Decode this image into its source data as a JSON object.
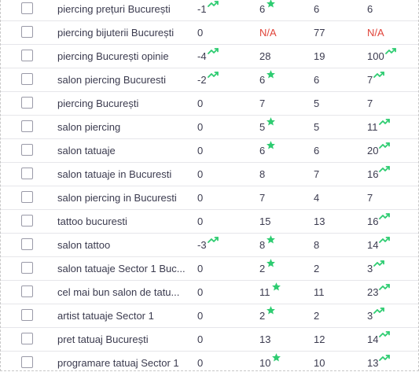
{
  "colors": {
    "trend": "#2ecc71",
    "na": "#e0443a",
    "text": "#3b3b4f"
  },
  "rows": [
    {
      "keyword": "piercing prețuri București",
      "change": "-1",
      "change_icon": "trend-up-icon",
      "pos": "6",
      "pos_icon": "star-icon",
      "prev": "6",
      "best": "6",
      "best_icon": ""
    },
    {
      "keyword": "piercing bijuterii București",
      "change": "0",
      "change_icon": "",
      "pos": "N/A",
      "pos_icon": "",
      "prev": "77",
      "best": "N/A",
      "best_icon": ""
    },
    {
      "keyword": "piercing București opinie",
      "change": "-4",
      "change_icon": "trend-up-icon",
      "pos": "28",
      "pos_icon": "",
      "prev": "19",
      "best": "100",
      "best_icon": "trend-up-icon"
    },
    {
      "keyword": "salon piercing Bucuresti",
      "change": "-2",
      "change_icon": "trend-up-icon",
      "pos": "6",
      "pos_icon": "star-icon",
      "prev": "6",
      "best": "7",
      "best_icon": "trend-up-icon"
    },
    {
      "keyword": "piercing București",
      "change": "0",
      "change_icon": "",
      "pos": "7",
      "pos_icon": "",
      "prev": "5",
      "best": "7",
      "best_icon": ""
    },
    {
      "keyword": "salon piercing",
      "change": "0",
      "change_icon": "",
      "pos": "5",
      "pos_icon": "star-icon",
      "prev": "5",
      "best": "11",
      "best_icon": "trend-up-icon"
    },
    {
      "keyword": "salon tatuaje",
      "change": "0",
      "change_icon": "",
      "pos": "6",
      "pos_icon": "star-icon",
      "prev": "6",
      "best": "20",
      "best_icon": "trend-up-icon"
    },
    {
      "keyword": "salon tatuaje in Bucuresti",
      "change": "0",
      "change_icon": "",
      "pos": "8",
      "pos_icon": "",
      "prev": "7",
      "best": "16",
      "best_icon": "trend-up-icon"
    },
    {
      "keyword": "salon piercing in Bucuresti",
      "change": "0",
      "change_icon": "",
      "pos": "7",
      "pos_icon": "",
      "prev": "4",
      "best": "7",
      "best_icon": ""
    },
    {
      "keyword": "tattoo bucuresti",
      "change": "0",
      "change_icon": "",
      "pos": "15",
      "pos_icon": "",
      "prev": "13",
      "best": "16",
      "best_icon": "trend-up-icon"
    },
    {
      "keyword": "salon tattoo",
      "change": "-3",
      "change_icon": "trend-up-icon",
      "pos": "8",
      "pos_icon": "star-icon",
      "prev": "8",
      "best": "14",
      "best_icon": "trend-up-icon"
    },
    {
      "keyword": "salon tatuaje Sector 1 Buc...",
      "change": "0",
      "change_icon": "",
      "pos": "2",
      "pos_icon": "star-icon",
      "prev": "2",
      "best": "3",
      "best_icon": "trend-up-icon"
    },
    {
      "keyword": "cel mai bun salon de tatu...",
      "change": "0",
      "change_icon": "",
      "pos": "11",
      "pos_icon": "star-icon",
      "prev": "11",
      "best": "23",
      "best_icon": "trend-up-icon"
    },
    {
      "keyword": "artist tatuaje Sector 1",
      "change": "0",
      "change_icon": "",
      "pos": "2",
      "pos_icon": "star-icon",
      "prev": "2",
      "best": "3",
      "best_icon": "trend-up-icon"
    },
    {
      "keyword": "pret tatuaj București",
      "change": "0",
      "change_icon": "",
      "pos": "13",
      "pos_icon": "",
      "prev": "12",
      "best": "14",
      "best_icon": "trend-up-icon"
    },
    {
      "keyword": "programare tatuaj Sector 1",
      "change": "0",
      "change_icon": "",
      "pos": "10",
      "pos_icon": "star-icon",
      "prev": "10",
      "best": "13",
      "best_icon": "trend-up-icon"
    }
  ]
}
